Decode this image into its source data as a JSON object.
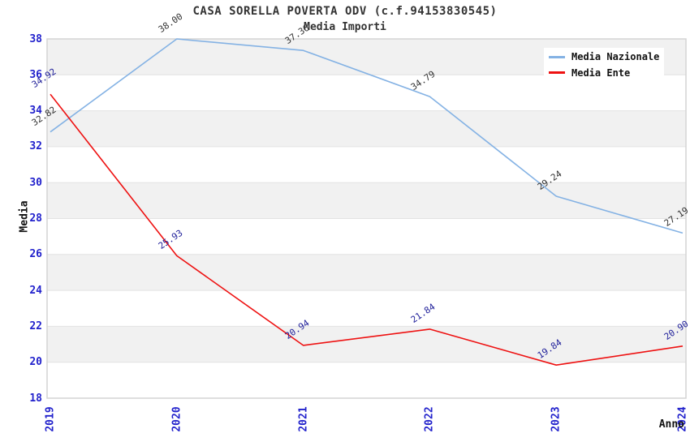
{
  "page": {
    "title": "CASA SORELLA POVERTA ODV (c.f.94153830545)",
    "subtitle": "Media Importi"
  },
  "chart_data": {
    "type": "line",
    "title": "CASA SORELLA POVERTA ODV (c.f.94153830545)",
    "subtitle": "Media Importi",
    "xlabel": "Anno",
    "ylabel": "Media",
    "categories": [
      "2019",
      "2020",
      "2021",
      "2022",
      "2023",
      "2024"
    ],
    "series": [
      {
        "name": "Media Nazionale",
        "color": "#84B2E4",
        "label_color": "#333333",
        "values": [
          32.82,
          38.0,
          37.36,
          34.79,
          29.24,
          27.19
        ]
      },
      {
        "name": "Media Ente",
        "color": "#EE1111",
        "label_color": "#22229B",
        "values": [
          34.92,
          25.93,
          20.94,
          21.84,
          19.84,
          20.9
        ]
      }
    ],
    "ylim": [
      18,
      38
    ],
    "ytick_step": 2,
    "yticks": [
      "18",
      "20",
      "22",
      "24",
      "26",
      "28",
      "30",
      "32",
      "34",
      "36",
      "38"
    ],
    "grid": "alternating-horizontal-bands",
    "legend_position": "top-right",
    "colors": {
      "tick_label": "#2222CC",
      "band_gray": "#F1F1F1",
      "band_white": "#FFFFFF",
      "gridline": "#E2E2E2",
      "border": "#D4D4D4",
      "title": "#333333",
      "axis_title": "#111111",
      "background": "#FFFFFF"
    }
  }
}
